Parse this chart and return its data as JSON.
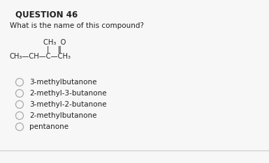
{
  "title": "QUESTION 46",
  "question": "What is the name of this compound?",
  "options": [
    "3-methylbutanone",
    "2-methyl-3-butanone",
    "3-methyl-2-butanone",
    "2-methylbutanone",
    "pentanone"
  ],
  "bg_color": "#f7f7f7",
  "text_color": "#222222",
  "circle_color": "#aaaaaa",
  "title_fontsize": 8.5,
  "question_fontsize": 7.5,
  "option_fontsize": 7.5,
  "compound_fontsize": 7.2
}
